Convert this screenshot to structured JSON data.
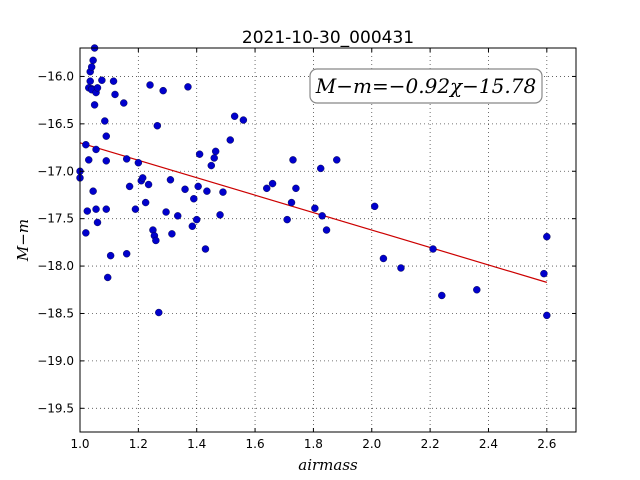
{
  "chart_data": {
    "type": "scatter",
    "title": "2021-10-30_000431",
    "xlabel": "airmass",
    "ylabel": "M−m",
    "xlim": [
      1.0,
      2.7
    ],
    "ylim": [
      -15.7,
      -19.75
    ],
    "y_inverted": true,
    "xticks": [
      1.0,
      1.2,
      1.4,
      1.6,
      1.8,
      2.0,
      2.2,
      2.4,
      2.6
    ],
    "xtick_labels": [
      "1.0",
      "1.2",
      "1.4",
      "1.6",
      "1.8",
      "2.0",
      "2.2",
      "2.4",
      "2.6"
    ],
    "yticks": [
      -16.0,
      -16.5,
      -17.0,
      -17.5,
      -18.0,
      -18.5,
      -19.0,
      -19.5
    ],
    "ytick_labels": [
      "−16.0",
      "−16.5",
      "−17.0",
      "−17.5",
      "−18.0",
      "−18.5",
      "−19.0",
      "−19.5"
    ],
    "grid": true,
    "annotation": "M−m=−0.92χ−15.78",
    "marker_color": "#0000cc",
    "fit_color": "#cc0000",
    "fit": {
      "slope": -0.92,
      "intercept": -15.78,
      "x_range": [
        1.0,
        2.6
      ]
    },
    "points": [
      [
        1.0,
        -17.0
      ],
      [
        1.0,
        -17.07
      ],
      [
        1.02,
        -16.72
      ],
      [
        1.02,
        -17.65
      ],
      [
        1.025,
        -17.42
      ],
      [
        1.03,
        -16.88
      ],
      [
        1.03,
        -16.12
      ],
      [
        1.035,
        -15.95
      ],
      [
        1.035,
        -16.05
      ],
      [
        1.04,
        -15.9
      ],
      [
        1.04,
        -16.13
      ],
      [
        1.04,
        -16.14
      ],
      [
        1.045,
        -15.83
      ],
      [
        1.045,
        -17.21
      ],
      [
        1.05,
        -15.7
      ],
      [
        1.05,
        -16.3
      ],
      [
        1.055,
        -16.17
      ],
      [
        1.055,
        -16.77
      ],
      [
        1.055,
        -17.4
      ],
      [
        1.06,
        -16.12
      ],
      [
        1.06,
        -17.54
      ],
      [
        1.075,
        -16.04
      ],
      [
        1.085,
        -16.47
      ],
      [
        1.09,
        -16.63
      ],
      [
        1.09,
        -16.89
      ],
      [
        1.09,
        -17.4
      ],
      [
        1.095,
        -18.12
      ],
      [
        1.105,
        -17.89
      ],
      [
        1.115,
        -16.05
      ],
      [
        1.12,
        -16.19
      ],
      [
        1.15,
        -16.28
      ],
      [
        1.16,
        -16.87
      ],
      [
        1.16,
        -17.87
      ],
      [
        1.17,
        -17.16
      ],
      [
        1.19,
        -17.4
      ],
      [
        1.2,
        -16.91
      ],
      [
        1.21,
        -17.1
      ],
      [
        1.215,
        -17.07
      ],
      [
        1.225,
        -17.33
      ],
      [
        1.235,
        -17.14
      ],
      [
        1.24,
        -16.09
      ],
      [
        1.25,
        -17.62
      ],
      [
        1.255,
        -17.68
      ],
      [
        1.26,
        -17.73
      ],
      [
        1.265,
        -16.52
      ],
      [
        1.27,
        -18.49
      ],
      [
        1.285,
        -16.15
      ],
      [
        1.295,
        -17.43
      ],
      [
        1.31,
        -17.09
      ],
      [
        1.315,
        -17.66
      ],
      [
        1.335,
        -17.47
      ],
      [
        1.36,
        -17.19
      ],
      [
        1.37,
        -16.11
      ],
      [
        1.385,
        -17.58
      ],
      [
        1.39,
        -17.29
      ],
      [
        1.4,
        -17.51
      ],
      [
        1.405,
        -17.16
      ],
      [
        1.41,
        -16.82
      ],
      [
        1.43,
        -17.82
      ],
      [
        1.435,
        -17.21
      ],
      [
        1.45,
        -16.94
      ],
      [
        1.46,
        -16.86
      ],
      [
        1.465,
        -16.79
      ],
      [
        1.48,
        -17.46
      ],
      [
        1.49,
        -17.22
      ],
      [
        1.515,
        -16.67
      ],
      [
        1.53,
        -16.42
      ],
      [
        1.56,
        -16.46
      ],
      [
        1.64,
        -17.18
      ],
      [
        1.66,
        -17.13
      ],
      [
        1.71,
        -17.51
      ],
      [
        1.725,
        -17.33
      ],
      [
        1.73,
        -16.88
      ],
      [
        1.74,
        -17.18
      ],
      [
        1.805,
        -17.39
      ],
      [
        1.825,
        -16.97
      ],
      [
        1.83,
        -17.47
      ],
      [
        1.845,
        -17.62
      ],
      [
        1.88,
        -16.88
      ],
      [
        2.01,
        -17.37
      ],
      [
        2.04,
        -17.92
      ],
      [
        2.1,
        -18.02
      ],
      [
        2.21,
        -17.82
      ],
      [
        2.24,
        -18.31
      ],
      [
        2.36,
        -18.25
      ],
      [
        2.59,
        -18.08
      ],
      [
        2.6,
        -17.69
      ],
      [
        2.6,
        -18.52
      ]
    ]
  }
}
